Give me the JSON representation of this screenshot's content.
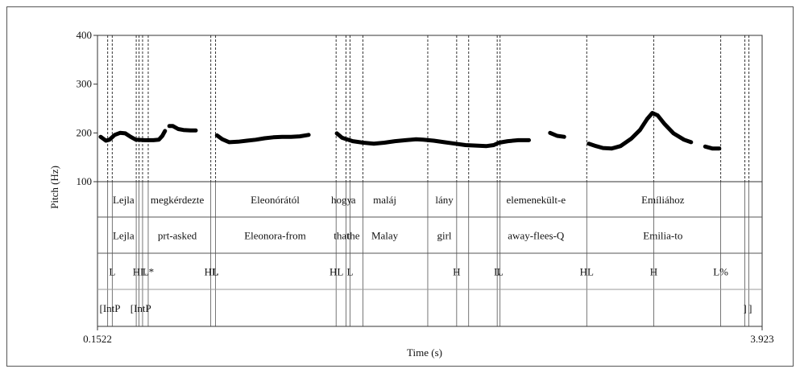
{
  "chart_data": {
    "type": "line",
    "xlabel": "Time (s)",
    "ylabel": "Pitch (Hz)",
    "xlim": [
      0.1522,
      3.923
    ],
    "ylim": [
      100,
      400
    ],
    "x_tick_labels": [
      "0.1522",
      "3.923"
    ],
    "y_ticks": [
      100,
      200,
      300,
      400
    ],
    "y_tick_labels": [
      "100",
      "200",
      "300",
      "400"
    ],
    "pitch_segments": [
      [
        [
          0.17,
          192
        ],
        [
          0.2,
          184
        ],
        [
          0.22,
          186
        ],
        [
          0.25,
          196
        ],
        [
          0.28,
          200
        ],
        [
          0.31,
          199
        ],
        [
          0.34,
          192
        ],
        [
          0.37,
          186
        ],
        [
          0.42,
          185
        ],
        [
          0.47,
          185
        ],
        [
          0.5,
          186
        ],
        [
          0.52,
          194
        ],
        [
          0.535,
          204
        ]
      ],
      [
        [
          0.56,
          214
        ],
        [
          0.58,
          214
        ],
        [
          0.61,
          208
        ],
        [
          0.64,
          206
        ],
        [
          0.68,
          205
        ],
        [
          0.71,
          205
        ]
      ],
      [
        [
          0.83,
          195
        ],
        [
          0.86,
          187
        ],
        [
          0.9,
          181
        ],
        [
          0.95,
          182
        ],
        [
          1.0,
          184
        ],
        [
          1.05,
          186
        ],
        [
          1.1,
          189
        ],
        [
          1.15,
          191
        ],
        [
          1.2,
          192
        ],
        [
          1.25,
          192
        ],
        [
          1.3,
          193
        ],
        [
          1.35,
          196
        ]
      ],
      [
        [
          1.51,
          199
        ],
        [
          1.54,
          190
        ],
        [
          1.6,
          183
        ],
        [
          1.66,
          180
        ],
        [
          1.72,
          178
        ],
        [
          1.78,
          180
        ],
        [
          1.84,
          183
        ],
        [
          1.9,
          185
        ],
        [
          1.96,
          187
        ],
        [
          2.0,
          186
        ],
        [
          2.06,
          184
        ],
        [
          2.12,
          181
        ],
        [
          2.18,
          178
        ],
        [
          2.24,
          175
        ],
        [
          2.3,
          174
        ],
        [
          2.36,
          173
        ],
        [
          2.4,
          175
        ],
        [
          2.43,
          180
        ],
        [
          2.48,
          183
        ],
        [
          2.54,
          185
        ],
        [
          2.6,
          185
        ]
      ],
      [
        [
          2.72,
          200
        ],
        [
          2.76,
          194
        ],
        [
          2.8,
          192
        ]
      ],
      [
        [
          2.94,
          178
        ],
        [
          2.98,
          173
        ],
        [
          3.02,
          169
        ],
        [
          3.07,
          168
        ],
        [
          3.12,
          173
        ],
        [
          3.18,
          188
        ],
        [
          3.23,
          206
        ],
        [
          3.27,
          228
        ],
        [
          3.3,
          241
        ],
        [
          3.33,
          236
        ],
        [
          3.37,
          218
        ],
        [
          3.42,
          199
        ],
        [
          3.48,
          186
        ],
        [
          3.52,
          181
        ]
      ],
      [
        [
          3.6,
          172
        ],
        [
          3.64,
          168
        ],
        [
          3.68,
          168
        ]
      ]
    ],
    "boundaries": [
      0.21,
      0.236,
      0.372,
      0.388,
      0.408,
      0.44,
      0.795,
      0.822,
      1.506,
      1.562,
      1.585,
      1.658,
      2.026,
      2.19,
      2.258,
      2.42,
      2.436,
      2.928,
      3.308,
      3.688,
      3.825,
      3.848
    ],
    "tiers": [
      {
        "name": "words",
        "labels": [
          {
            "text": "Lejla",
            "x": 0.3
          },
          {
            "text": "megkérdezte",
            "x": 0.605
          },
          {
            "text": "Eleonórától",
            "x": 1.16
          },
          {
            "text": "hogy",
            "x": 1.537
          },
          {
            "text": "a",
            "x": 1.604
          },
          {
            "text": "maláj",
            "x": 1.782
          },
          {
            "text": "lány",
            "x": 2.12
          },
          {
            "text": "elemenekült-e",
            "x": 2.64
          },
          {
            "text": "Emíliához",
            "x": 3.36
          }
        ]
      },
      {
        "name": "gloss",
        "labels": [
          {
            "text": "Lejla",
            "x": 0.3
          },
          {
            "text": "prt-asked",
            "x": 0.605
          },
          {
            "text": "Eleonora-from",
            "x": 1.16
          },
          {
            "text": "that",
            "x": 1.537
          },
          {
            "text": "the",
            "x": 1.604
          },
          {
            "text": "Malay",
            "x": 1.782
          },
          {
            "text": "girl",
            "x": 2.12
          },
          {
            "text": "away-flees-Q",
            "x": 2.64
          },
          {
            "text": "Emilia-to",
            "x": 3.36
          }
        ]
      },
      {
        "name": "tones",
        "labels": [
          {
            "text": "L",
            "x": 0.236
          },
          {
            "text": "HL",
            "x": 0.392
          },
          {
            "text": "L*",
            "x": 0.44
          },
          {
            "text": "HL",
            "x": 0.798
          },
          {
            "text": "L",
            "x": 0.822
          },
          {
            "text": "HL",
            "x": 1.508
          },
          {
            "text": "L",
            "x": 1.585
          },
          {
            "text": "H",
            "x": 2.19
          },
          {
            "text": "L",
            "x": 2.42
          },
          {
            "text": "L",
            "x": 2.436
          },
          {
            "text": "HL",
            "x": 2.928
          },
          {
            "text": "H",
            "x": 3.308
          },
          {
            "text": "L%",
            "x": 3.688
          }
        ]
      },
      {
        "name": "phrases",
        "labels": [
          {
            "text": "[IntP",
            "x": 0.223
          },
          {
            "text": "[IntP",
            "x": 0.398
          },
          {
            "text": "]",
            "x": 3.825
          },
          {
            "text": "]",
            "x": 3.856
          }
        ]
      }
    ]
  }
}
